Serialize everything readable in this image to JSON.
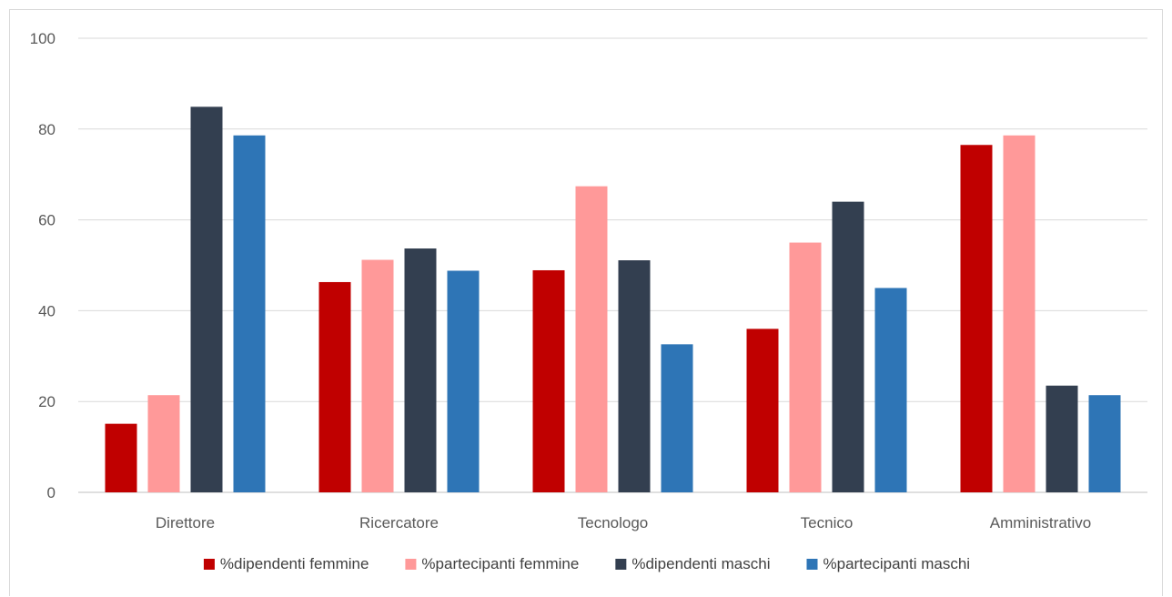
{
  "chart_data": {
    "type": "bar",
    "categories": [
      "Direttore",
      "Ricercatore",
      "Tecnologo",
      "Tecnico",
      "Amministrativo"
    ],
    "series": [
      {
        "name": "%dipendenti femmine",
        "color": "#c00000",
        "values": [
          15.1,
          46.3,
          48.9,
          36.0,
          76.5
        ]
      },
      {
        "name": "%partecipanti femmine",
        "color": "#ff9999",
        "values": [
          21.4,
          51.2,
          67.4,
          55.0,
          78.6
        ]
      },
      {
        "name": "%dipendenti maschi",
        "color": "#333f50",
        "values": [
          84.9,
          53.7,
          51.1,
          64.0,
          23.5
        ]
      },
      {
        "name": "%partecipanti maschi",
        "color": "#2e75b6",
        "values": [
          78.6,
          48.8,
          32.6,
          45.0,
          21.4
        ]
      }
    ],
    "ylim": [
      0,
      100
    ],
    "yticks": [
      0,
      20,
      40,
      60,
      80,
      100
    ],
    "grid": true,
    "legend_position": "bottom",
    "title": "",
    "xlabel": "",
    "ylabel": ""
  }
}
